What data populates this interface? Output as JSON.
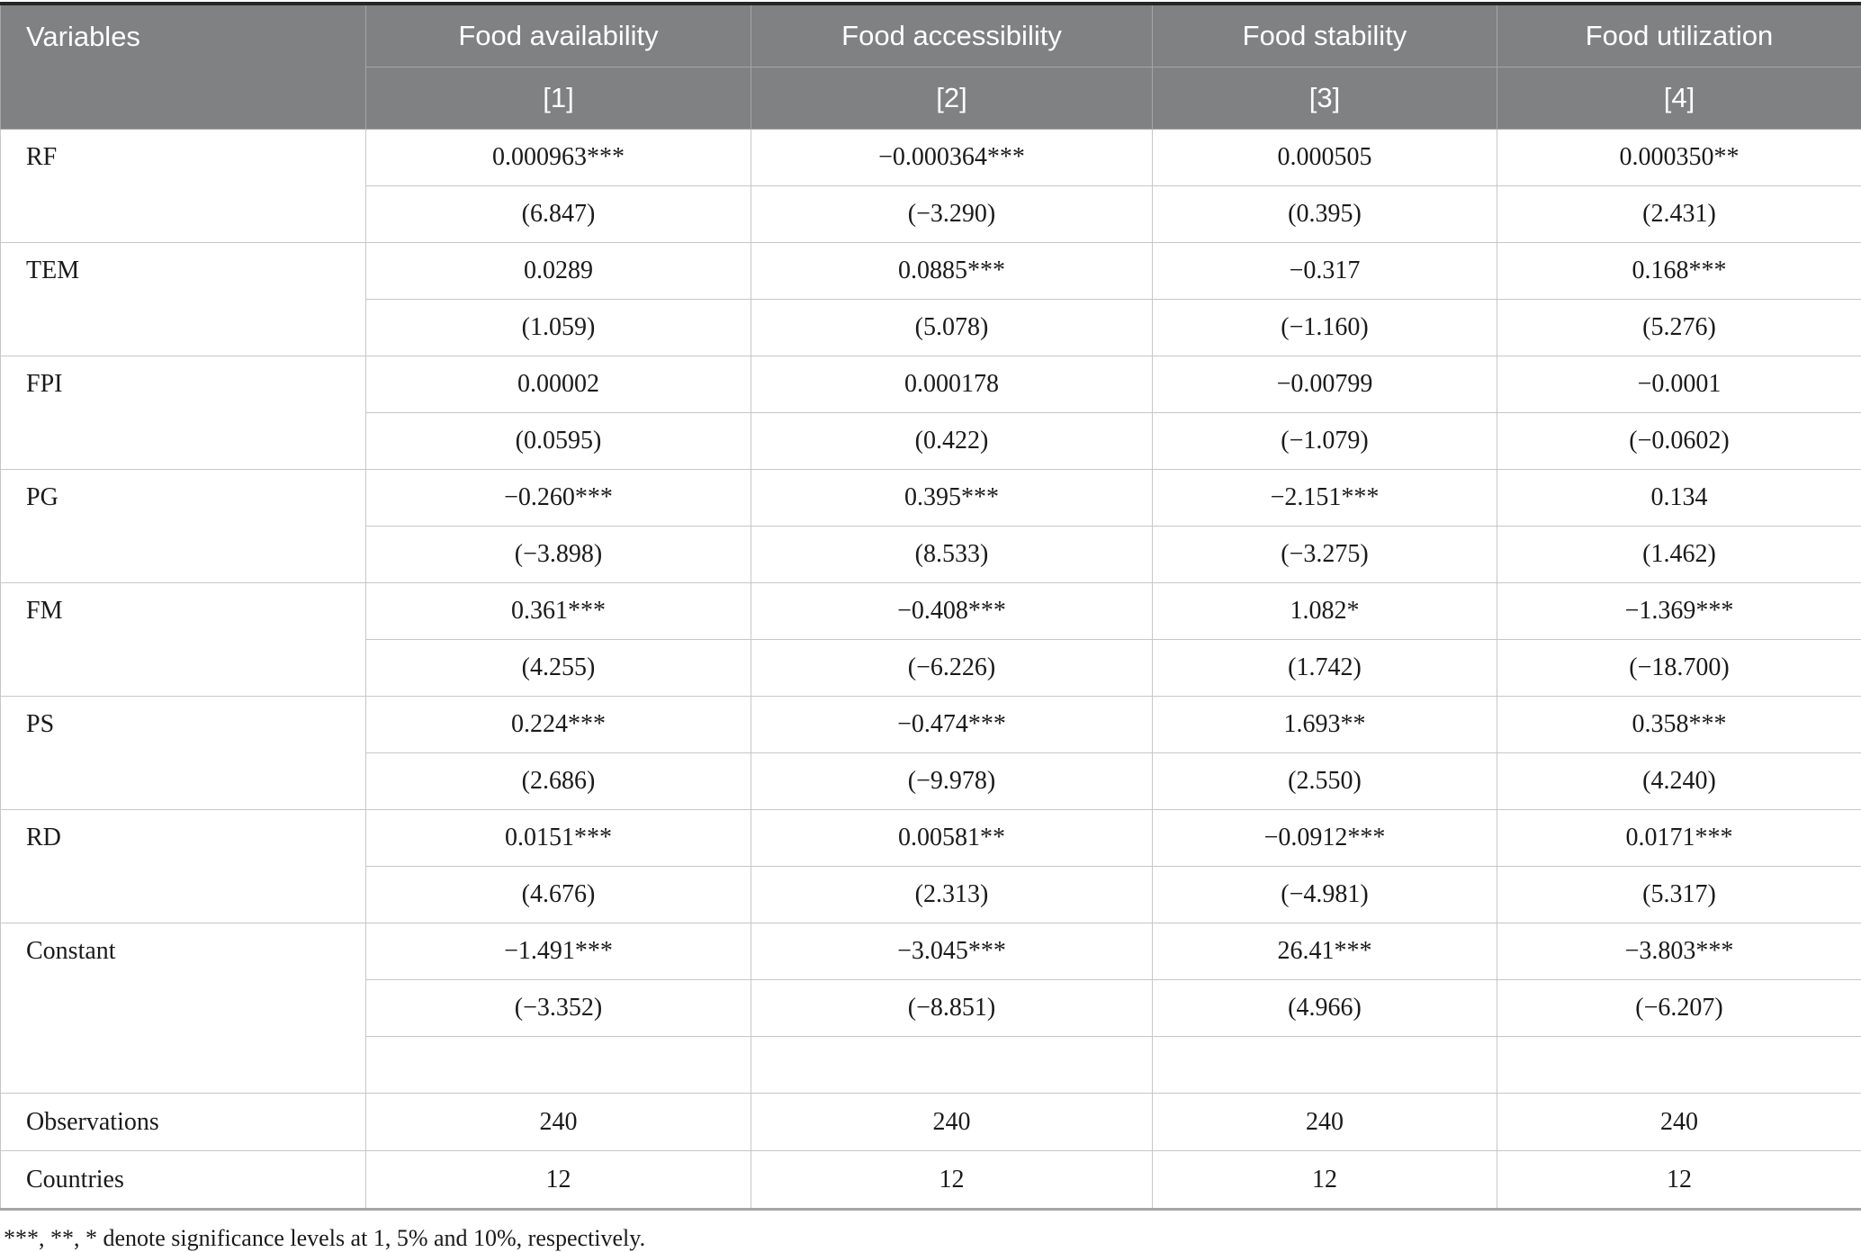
{
  "header": {
    "variables_label": "Variables",
    "columns": [
      {
        "label": "Food availability",
        "model": "[1]"
      },
      {
        "label": "Food accessibility",
        "model": "[2]"
      },
      {
        "label": "Food stability",
        "model": "[3]"
      },
      {
        "label": "Food utilization",
        "model": "[4]"
      }
    ]
  },
  "rows": [
    {
      "variable": "RF",
      "coefficients": [
        "0.000963***",
        "−0.000364***",
        "0.000505",
        "0.000350**"
      ],
      "tstats": [
        "(6.847)",
        "(−3.290)",
        "(0.395)",
        "(2.431)"
      ]
    },
    {
      "variable": "TEM",
      "coefficients": [
        "0.0289",
        "0.0885***",
        "−0.317",
        "0.168***"
      ],
      "tstats": [
        "(1.059)",
        "(5.078)",
        "(−1.160)",
        "(5.276)"
      ]
    },
    {
      "variable": "FPI",
      "coefficients": [
        "0.00002",
        "0.000178",
        "−0.00799",
        "−0.0001"
      ],
      "tstats": [
        "(0.0595)",
        "(0.422)",
        "(−1.079)",
        "(−0.0602)"
      ]
    },
    {
      "variable": "PG",
      "coefficients": [
        "−0.260***",
        "0.395***",
        "−2.151***",
        "0.134"
      ],
      "tstats": [
        "(−3.898)",
        "(8.533)",
        "(−3.275)",
        "(1.462)"
      ]
    },
    {
      "variable": "FM",
      "coefficients": [
        "0.361***",
        "−0.408***",
        "1.082*",
        "−1.369***"
      ],
      "tstats": [
        "(4.255)",
        "(−6.226)",
        "(1.742)",
        "(−18.700)"
      ]
    },
    {
      "variable": "PS",
      "coefficients": [
        "0.224***",
        "−0.474***",
        "1.693**",
        "0.358***"
      ],
      "tstats": [
        "(2.686)",
        "(−9.978)",
        "(2.550)",
        "(4.240)"
      ]
    },
    {
      "variable": "RD",
      "coefficients": [
        "0.0151***",
        "0.00581**",
        "−0.0912***",
        "0.0171***"
      ],
      "tstats": [
        "(4.676)",
        "(2.313)",
        "(−4.981)",
        "(5.317)"
      ]
    },
    {
      "variable": "Constant",
      "coefficients": [
        "−1.491***",
        "−3.045***",
        "26.41***",
        "−3.803***"
      ],
      "tstats": [
        "(−3.352)",
        "(−8.851)",
        "(4.966)",
        "(−6.207)"
      ]
    }
  ],
  "summary_rows": [
    {
      "label": "Observations",
      "values": [
        "240",
        "240",
        "240",
        "240"
      ]
    },
    {
      "label": "Countries",
      "values": [
        "12",
        "12",
        "12",
        "12"
      ]
    }
  ],
  "footnote": "***, **, * denote significance levels at 1, 5% and 10%, respectively.",
  "colors": {
    "header_bg": "#7f8182",
    "header_text": "#ffffff",
    "body_border": "#c7c7c7",
    "top_rule": "#262626"
  }
}
